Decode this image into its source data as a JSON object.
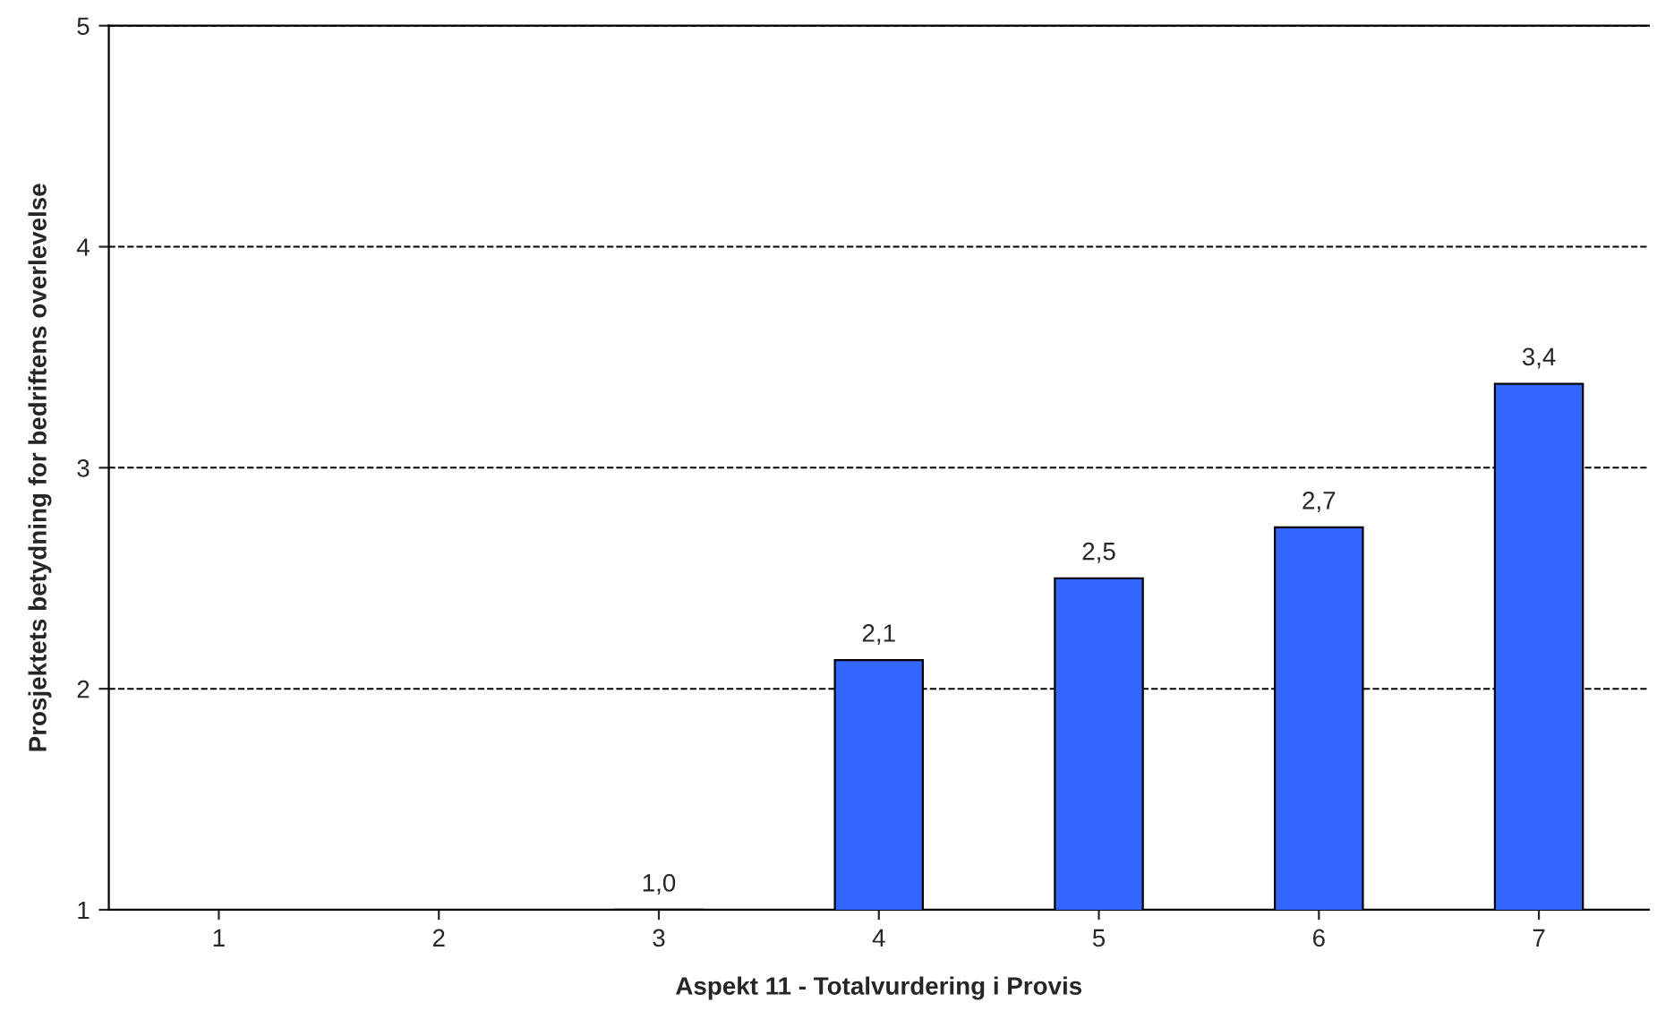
{
  "chart_data": {
    "type": "bar",
    "xlabel": "Aspekt 11 - Totalvurdering i Provis",
    "ylabel": "Prosjektets betydning for bedriftens overlevelse",
    "categories": [
      "1",
      "2",
      "3",
      "4",
      "5",
      "6",
      "7"
    ],
    "values": [
      null,
      null,
      1.0,
      2.13,
      2.5,
      2.73,
      3.38
    ],
    "value_labels": [
      null,
      null,
      "1,0",
      "2,1",
      "2,5",
      "2,7",
      "3,4"
    ],
    "color": "#3366ff",
    "ylim": [
      1,
      5
    ],
    "yticks": [
      1,
      2,
      3,
      4,
      5
    ],
    "grid": "y",
    "line_style": "dashed"
  }
}
